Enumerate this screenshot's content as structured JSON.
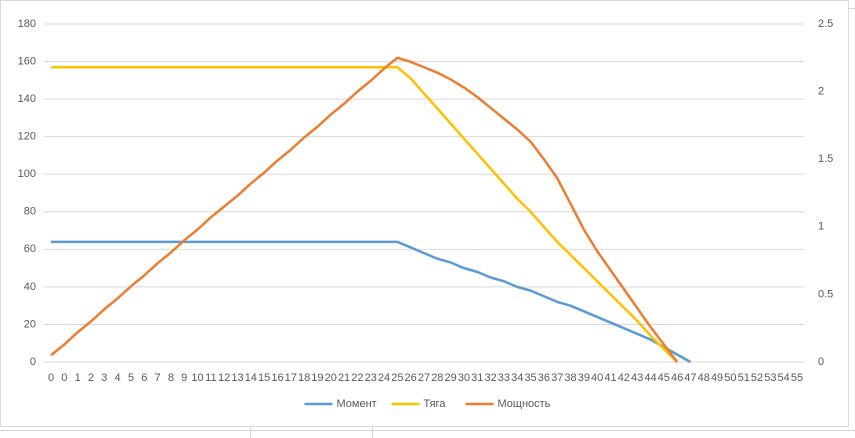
{
  "chart_data": {
    "type": "line",
    "categories": [
      "0",
      "0",
      "1",
      "2",
      "3",
      "4",
      "5",
      "6",
      "7",
      "8",
      "9",
      "10",
      "11",
      "12",
      "13",
      "14",
      "15",
      "16",
      "17",
      "18",
      "19",
      "20",
      "21",
      "22",
      "23",
      "24",
      "25",
      "26",
      "27",
      "28",
      "29",
      "30",
      "31",
      "32",
      "33",
      "34",
      "35",
      "36",
      "37",
      "38",
      "39",
      "40",
      "41",
      "42",
      "43",
      "44",
      "45",
      "46",
      "47",
      "48",
      "49",
      "50",
      "51",
      "52",
      "53",
      "54",
      "55"
    ],
    "series": [
      {
        "name": "Момент",
        "color": "#5b9bd5",
        "values": [
          64,
          64,
          64,
          64,
          64,
          64,
          64,
          64,
          64,
          64,
          64,
          64,
          64,
          64,
          64,
          64,
          64,
          64,
          64,
          64,
          64,
          64,
          64,
          64,
          64,
          64,
          64,
          61,
          58,
          55,
          53,
          50,
          48,
          45,
          43,
          40,
          38,
          35,
          32,
          30,
          27,
          24,
          21,
          18,
          15,
          12,
          8,
          4,
          0,
          null,
          null,
          null,
          null,
          null,
          null,
          null,
          null
        ]
      },
      {
        "name": "Тяга",
        "color": "#ffc000",
        "values": [
          157,
          157,
          157,
          157,
          157,
          157,
          157,
          157,
          157,
          157,
          157,
          157,
          157,
          157,
          157,
          157,
          157,
          157,
          157,
          157,
          157,
          157,
          157,
          157,
          157,
          157,
          157,
          151,
          143,
          135,
          127,
          119,
          111,
          103,
          95,
          87,
          80,
          72,
          64,
          57,
          50,
          43,
          36,
          29,
          22,
          14,
          7,
          0,
          null,
          null,
          null,
          null,
          null,
          null,
          null,
          null,
          null
        ]
      },
      {
        "name": "Мощность",
        "color": "#ed7d31",
        "axis": "y2",
        "values": [
          0.05,
          0.13,
          0.22,
          0.3,
          0.39,
          0.47,
          0.56,
          0.64,
          0.73,
          0.81,
          0.9,
          0.98,
          1.07,
          1.15,
          1.23,
          1.32,
          1.4,
          1.49,
          1.57,
          1.66,
          1.74,
          1.83,
          1.91,
          2.0,
          2.08,
          2.17,
          2.25,
          2.22,
          2.18,
          2.14,
          2.09,
          2.03,
          1.96,
          1.88,
          1.8,
          1.72,
          1.63,
          1.5,
          1.36,
          1.17,
          0.98,
          0.82,
          0.68,
          0.54,
          0.4,
          0.26,
          0.13,
          0,
          null,
          null,
          null,
          null,
          null,
          null,
          null,
          null,
          null
        ]
      }
    ],
    "ylim": [
      0,
      180
    ],
    "yticks": [
      0,
      20,
      40,
      60,
      80,
      100,
      120,
      140,
      160,
      180
    ],
    "y2lim": [
      0,
      2.5
    ],
    "y2ticks": [
      0,
      0.5,
      1,
      1.5,
      2,
      2.5
    ],
    "grid": true,
    "legend": "bottom"
  }
}
